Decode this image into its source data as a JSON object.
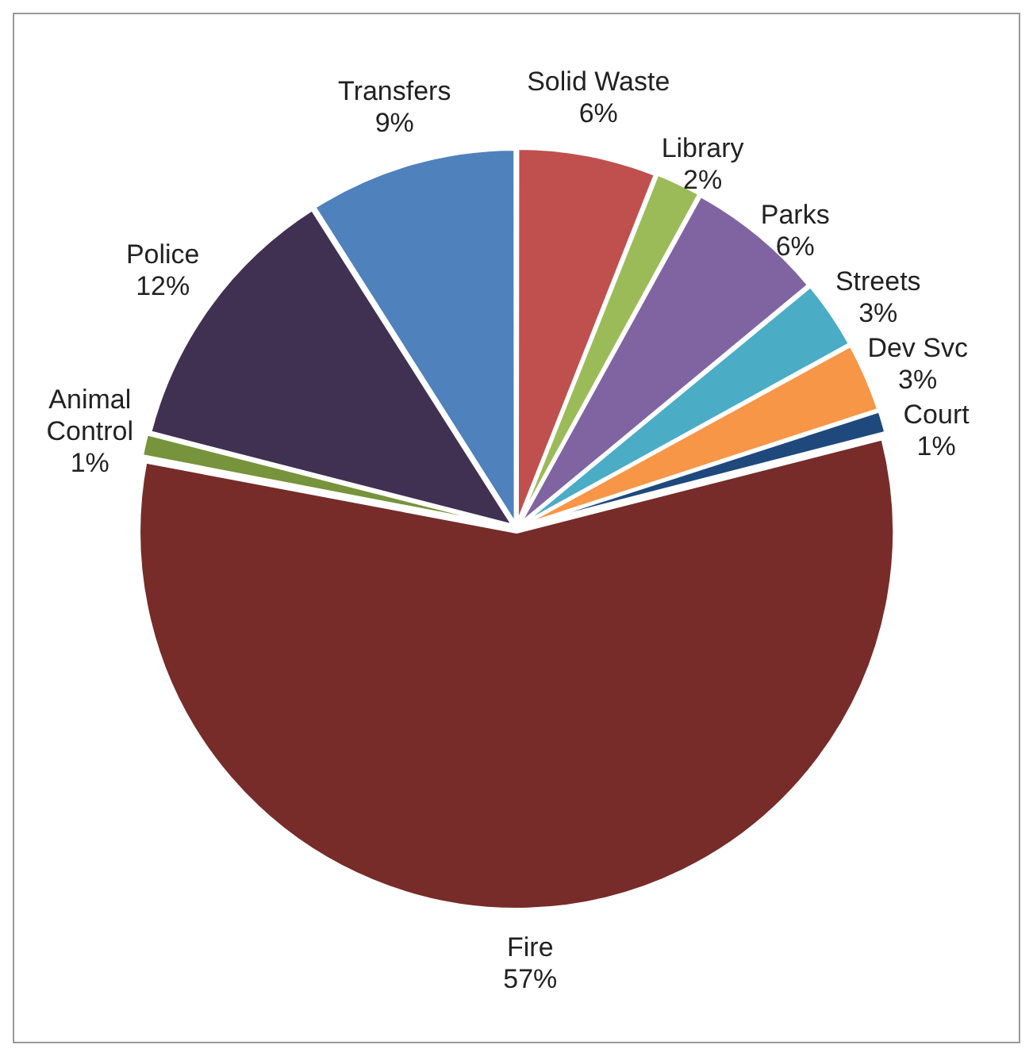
{
  "chart_data": {
    "type": "pie",
    "categories": [
      "Solid Waste",
      "Library",
      "Parks",
      "Streets",
      "Dev Svc",
      "Court",
      "Fire",
      "Animal Control",
      "Police",
      "Transfers"
    ],
    "values": [
      6,
      2,
      6,
      3,
      3,
      1,
      57,
      1,
      12,
      9
    ],
    "value_labels": [
      "6%",
      "2%",
      "6%",
      "3%",
      "3%",
      "1%",
      "57%",
      "1%",
      "12%",
      "9%"
    ],
    "colors": [
      "#c0504d",
      "#9bbb59",
      "#8064a2",
      "#4bacc6",
      "#f79646",
      "#1f497d",
      "#772c2a",
      "#77933c",
      "#403152",
      "#4f81bd"
    ],
    "legend": false
  }
}
